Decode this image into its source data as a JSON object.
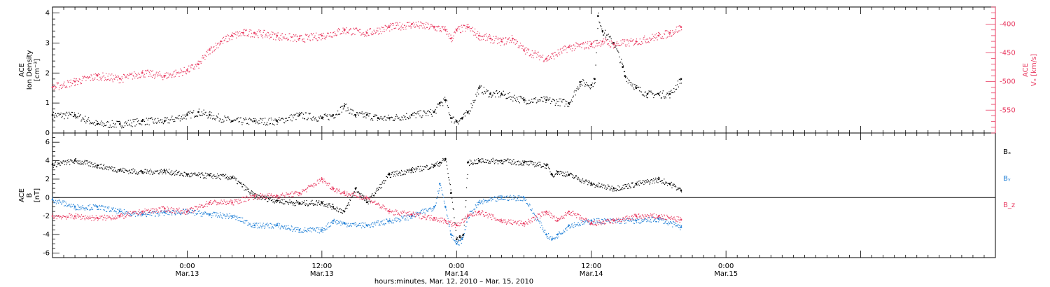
{
  "colors": {
    "black": "#000000",
    "red": "#e8385f",
    "blue": "#1f7fd6"
  },
  "chart_data": [
    {
      "type": "scatter",
      "ylabel_lines": [
        "ACE",
        "Ion Density",
        "[cm⁻³]"
      ],
      "ylim": [
        0,
        4.2
      ],
      "yticks": [
        0,
        1,
        2,
        3,
        4
      ],
      "y2label_lines": [
        "ACE",
        "Vₓ [km/s]"
      ],
      "y2lim": [
        -590,
        -370
      ],
      "y2ticks": [
        -400,
        -450,
        -500,
        -550
      ],
      "series": [
        {
          "name": "Ion Density",
          "axis": "left",
          "color": "#000000",
          "t": [
            -12,
            -10,
            -8,
            -6,
            -4,
            -2,
            0,
            1,
            2,
            4,
            6,
            8,
            10,
            12,
            13,
            14,
            15,
            16,
            17,
            18,
            20,
            22,
            22.5,
            23,
            23.5,
            24,
            24.5,
            25,
            26,
            27,
            28,
            30,
            32,
            34,
            35,
            36,
            36.3,
            36.6,
            37,
            38,
            38.8,
            39,
            40,
            41,
            42,
            43,
            44
          ],
          "y": [
            0.6,
            0.6,
            0.3,
            0.3,
            0.4,
            0.4,
            0.6,
            0.7,
            0.6,
            0.4,
            0.4,
            0.4,
            0.6,
            0.5,
            0.6,
            0.9,
            0.6,
            0.6,
            0.5,
            0.5,
            0.6,
            0.7,
            1.0,
            1.1,
            0.5,
            0.4,
            0.5,
            0.7,
            1.5,
            1.3,
            1.3,
            1.1,
            1.1,
            1.0,
            1.7,
            1.6,
            1.8,
            3.9,
            3.4,
            3.0,
            2.2,
            1.9,
            1.5,
            1.3,
            1.3,
            1.3,
            1.8
          ]
        },
        {
          "name": "Vx",
          "axis": "right",
          "color": "#e8385f",
          "t": [
            -12,
            -10,
            -8,
            -6,
            -4,
            -2,
            0,
            1,
            2,
            3,
            4,
            5,
            6,
            8,
            10,
            12,
            14,
            16,
            18,
            20,
            22,
            23,
            23.5,
            24,
            25,
            26,
            27,
            28,
            29,
            30,
            32,
            34,
            36,
            37,
            38,
            40,
            42,
            43,
            44
          ],
          "y": [
            -510,
            -500,
            -490,
            -495,
            -485,
            -490,
            -480,
            -470,
            -445,
            -430,
            -420,
            -415,
            -415,
            -420,
            -425,
            -420,
            -410,
            -415,
            -405,
            -400,
            -405,
            -410,
            -425,
            -410,
            -405,
            -420,
            -425,
            -430,
            -425,
            -445,
            -460,
            -440,
            -435,
            -430,
            -435,
            -430,
            -420,
            -415,
            -405
          ]
        }
      ]
    },
    {
      "type": "scatter",
      "ylabel_lines": [
        "ACE",
        "B",
        "[nT]"
      ],
      "ylim": [
        -6.5,
        7
      ],
      "yticks": [
        -6,
        -4,
        -2,
        0,
        2,
        4,
        6
      ],
      "legend_position": "right",
      "series": [
        {
          "name": "Bₓ",
          "color": "#000000",
          "t": [
            -12,
            -10,
            -8,
            -6,
            -4,
            -2,
            0,
            2,
            4,
            6,
            8,
            10,
            12,
            13,
            14,
            15,
            16,
            18,
            20,
            22,
            22.5,
            23,
            23.5,
            24,
            24.3,
            24.6,
            25,
            26,
            28,
            30,
            32,
            32.5,
            33,
            34,
            36,
            38,
            40,
            42,
            43,
            44
          ],
          "y": [
            3.6,
            4.0,
            3.5,
            3.0,
            2.8,
            2.9,
            2.5,
            2.4,
            2.2,
            0.2,
            -0.3,
            -0.6,
            -0.5,
            -1.0,
            -1.5,
            1.0,
            -0.5,
            2.5,
            3.0,
            3.5,
            3.8,
            4.2,
            0.5,
            -4.5,
            -4.3,
            -4.0,
            3.8,
            4.0,
            4.0,
            3.8,
            3.5,
            2.5,
            2.8,
            2.5,
            1.5,
            1.0,
            1.5,
            2.0,
            1.5,
            0.8
          ]
        },
        {
          "name": "Bᵧ",
          "color": "#1f7fd6",
          "t": [
            -12,
            -10,
            -8,
            -6,
            -4,
            -2,
            0,
            2,
            4,
            6,
            8,
            10,
            12,
            13,
            14,
            16,
            18,
            20,
            22,
            22.5,
            23,
            23.5,
            24,
            24.5,
            25,
            26,
            28,
            30,
            32,
            32.5,
            33,
            34,
            36,
            38,
            40,
            42,
            44
          ],
          "y": [
            -0.2,
            -1.0,
            -1.0,
            -1.5,
            -1.8,
            -1.6,
            -1.5,
            -1.8,
            -2.0,
            -3.0,
            -3.0,
            -3.5,
            -3.5,
            -2.5,
            -2.8,
            -3.0,
            -2.5,
            -2.0,
            -1.0,
            1.5,
            -1.0,
            -4.0,
            -5.0,
            -4.5,
            -2.0,
            -0.5,
            0.0,
            0.0,
            -4.0,
            -4.5,
            -4.0,
            -3.0,
            -2.5,
            -2.5,
            -2.5,
            -2.3,
            -3.2
          ]
        },
        {
          "name": "B_z",
          "color": "#e8385f",
          "t": [
            -12,
            -10,
            -8,
            -6,
            -4,
            -2,
            0,
            2,
            4,
            6,
            8,
            10,
            12,
            13,
            14,
            16,
            18,
            20,
            22,
            23,
            24,
            25,
            26,
            28,
            30,
            32,
            33,
            34,
            36,
            38,
            40,
            42,
            44
          ],
          "y": [
            -2.0,
            -2.0,
            -2.2,
            -2.0,
            -1.5,
            -1.2,
            -1.5,
            -0.5,
            -0.5,
            0.2,
            0.2,
            0.5,
            2.0,
            1.0,
            0.5,
            0.0,
            -1.5,
            -1.8,
            -2.2,
            -2.5,
            -3.0,
            -2.0,
            -1.5,
            -2.5,
            -2.8,
            -1.5,
            -2.5,
            -1.5,
            -2.8,
            -2.5,
            -2.0,
            -2.0,
            -2.4
          ]
        }
      ]
    }
  ],
  "x_axis": {
    "lim": [
      -12,
      72
    ],
    "ticks": [
      {
        "t": 0,
        "time": "0:00",
        "date": "Mar.13"
      },
      {
        "t": 12,
        "time": "12:00",
        "date": "Mar.13"
      },
      {
        "t": 24,
        "time": "0:00",
        "date": "Mar.14"
      },
      {
        "t": 36,
        "time": "12:00",
        "date": "Mar.14"
      },
      {
        "t": 48,
        "time": "0:00",
        "date": "Mar.15"
      }
    ],
    "label": "hours:minutes, Mar. 12, 2010 – Mar. 15, 2010"
  }
}
